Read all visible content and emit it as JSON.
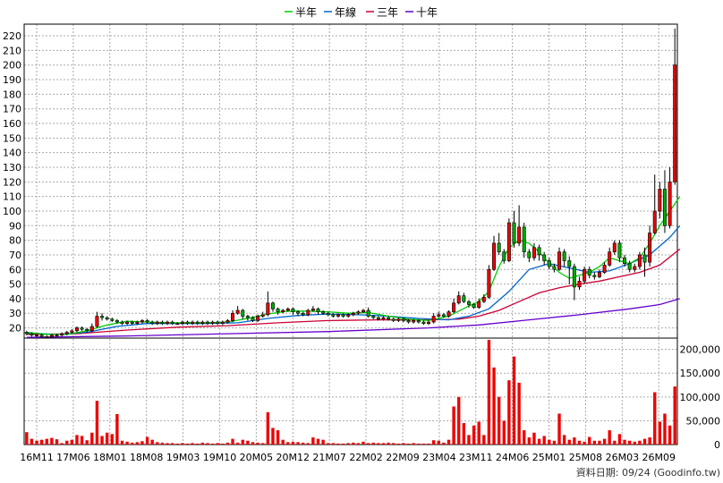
{
  "legend": [
    {
      "label": "半年",
      "color": "#00cc00"
    },
    {
      "label": "年線",
      "color": "#0066cc"
    },
    {
      "label": "三年",
      "color": "#cc0033"
    },
    {
      "label": "十年",
      "color": "#6600cc"
    }
  ],
  "footer": "資料日期: 09/24 (Goodinfo.tw)",
  "colors": {
    "up": "#ee0000",
    "down": "#00aa00",
    "volume": "#ee0000",
    "grid": "#aaaaaa"
  },
  "chart_data": {
    "type": "candlestick",
    "price_axis": {
      "ylim": [
        13,
        228
      ],
      "ticks": [
        20,
        30,
        40,
        50,
        60,
        70,
        80,
        90,
        100,
        110,
        120,
        130,
        140,
        150,
        160,
        170,
        180,
        190,
        200,
        210,
        220
      ]
    },
    "volume_axis": {
      "ylim": [
        0,
        220000
      ],
      "ticks": [
        0,
        50000,
        100000,
        150000,
        200000
      ],
      "tick_labels": [
        "0",
        "50,000",
        "100,000",
        "150,000",
        "200,000"
      ]
    },
    "x_tick_labels": [
      "16M11",
      "17M06",
      "18M01",
      "18M08",
      "19M03",
      "19M10",
      "20M05",
      "20M12",
      "21M07",
      "22M02",
      "22M09",
      "23M04",
      "23M11",
      "24M06",
      "25M01",
      "25M08",
      "26M03",
      "26M09"
    ],
    "candles": [
      [
        17,
        16,
        18,
        15
      ],
      [
        16,
        15,
        17,
        14
      ],
      [
        15,
        15,
        16,
        14
      ],
      [
        15,
        14,
        16,
        13
      ],
      [
        14,
        14,
        15,
        13
      ],
      [
        14,
        15,
        16,
        13
      ],
      [
        15,
        15,
        16,
        14
      ],
      [
        15,
        16,
        17,
        14
      ],
      [
        16,
        17,
        18,
        15
      ],
      [
        17,
        18,
        19,
        16
      ],
      [
        18,
        20,
        21,
        17
      ],
      [
        20,
        19,
        21,
        18
      ],
      [
        19,
        18,
        20,
        17
      ],
      [
        18,
        21,
        23,
        17
      ],
      [
        21,
        28,
        31,
        20
      ],
      [
        28,
        27,
        30,
        25
      ],
      [
        27,
        26,
        28,
        25
      ],
      [
        26,
        25,
        27,
        24
      ],
      [
        25,
        24,
        26,
        23
      ],
      [
        24,
        23,
        25,
        22
      ],
      [
        23,
        24,
        25,
        22
      ],
      [
        24,
        23,
        25,
        22
      ],
      [
        23,
        24,
        25,
        22
      ],
      [
        24,
        25,
        26,
        23
      ],
      [
        25,
        24,
        26,
        23
      ],
      [
        24,
        23,
        25,
        22
      ],
      [
        23,
        24,
        25,
        22
      ],
      [
        24,
        23,
        25,
        22
      ],
      [
        23,
        24,
        25,
        22
      ],
      [
        24,
        23,
        25,
        22
      ],
      [
        23,
        23,
        24,
        22
      ],
      [
        23,
        24,
        25,
        22
      ],
      [
        24,
        23,
        25,
        22
      ],
      [
        23,
        24,
        25,
        22
      ],
      [
        24,
        23,
        25,
        22
      ],
      [
        23,
        24,
        25,
        22
      ],
      [
        24,
        23,
        25,
        22
      ],
      [
        23,
        24,
        25,
        22
      ],
      [
        24,
        23,
        25,
        22
      ],
      [
        23,
        24,
        25,
        22
      ],
      [
        24,
        25,
        26,
        23
      ],
      [
        25,
        30,
        32,
        24
      ],
      [
        30,
        32,
        35,
        29
      ],
      [
        32,
        28,
        33,
        26
      ],
      [
        28,
        27,
        29,
        25
      ],
      [
        27,
        25,
        28,
        24
      ],
      [
        25,
        28,
        29,
        24
      ],
      [
        28,
        29,
        31,
        27
      ],
      [
        29,
        37,
        45,
        28
      ],
      [
        37,
        33,
        38,
        31
      ],
      [
        33,
        31,
        34,
        29
      ],
      [
        31,
        32,
        33,
        30
      ],
      [
        32,
        33,
        34,
        31
      ],
      [
        33,
        31,
        34,
        29
      ],
      [
        31,
        30,
        32,
        28
      ],
      [
        30,
        29,
        31,
        28
      ],
      [
        29,
        32,
        33,
        28
      ],
      [
        32,
        33,
        35,
        31
      ],
      [
        33,
        31,
        34,
        29
      ],
      [
        31,
        30,
        32,
        29
      ],
      [
        30,
        29,
        31,
        28
      ],
      [
        29,
        28,
        30,
        27
      ],
      [
        28,
        29,
        30,
        27
      ],
      [
        29,
        28,
        30,
        27
      ],
      [
        28,
        29,
        30,
        27
      ],
      [
        29,
        30,
        31,
        28
      ],
      [
        30,
        31,
        32,
        29
      ],
      [
        31,
        32,
        33,
        30
      ],
      [
        32,
        28,
        34,
        27
      ],
      [
        28,
        27,
        29,
        26
      ],
      [
        27,
        26,
        28,
        25
      ],
      [
        26,
        27,
        28,
        25
      ],
      [
        27,
        26,
        28,
        25
      ],
      [
        26,
        25,
        27,
        24
      ],
      [
        25,
        26,
        27,
        24
      ],
      [
        26,
        25,
        27,
        24
      ],
      [
        25,
        24,
        26,
        23
      ],
      [
        24,
        25,
        26,
        23
      ],
      [
        25,
        24,
        26,
        23
      ],
      [
        24,
        23,
        25,
        22
      ],
      [
        23,
        24,
        25,
        22
      ],
      [
        24,
        28,
        30,
        23
      ],
      [
        28,
        29,
        31,
        27
      ],
      [
        29,
        28,
        30,
        27
      ],
      [
        28,
        31,
        32,
        27
      ],
      [
        31,
        37,
        40,
        30
      ],
      [
        37,
        42,
        45,
        36
      ],
      [
        42,
        38,
        44,
        37
      ],
      [
        38,
        36,
        39,
        34
      ],
      [
        36,
        34,
        37,
        33
      ],
      [
        34,
        38,
        40,
        33
      ],
      [
        38,
        41,
        43,
        37
      ],
      [
        41,
        60,
        63,
        40
      ],
      [
        60,
        78,
        83,
        59
      ],
      [
        78,
        72,
        85,
        70
      ],
      [
        72,
        66,
        74,
        64
      ],
      [
        66,
        92,
        95,
        65
      ],
      [
        92,
        78,
        100,
        75
      ],
      [
        78,
        89,
        104,
        76
      ],
      [
        89,
        72,
        92,
        68
      ],
      [
        72,
        68,
        74,
        65
      ],
      [
        68,
        75,
        78,
        66
      ],
      [
        75,
        70,
        77,
        66
      ],
      [
        70,
        66,
        72,
        63
      ],
      [
        66,
        62,
        68,
        60
      ],
      [
        62,
        60,
        64,
        58
      ],
      [
        60,
        72,
        75,
        59
      ],
      [
        72,
        66,
        74,
        62
      ],
      [
        66,
        62,
        69,
        50
      ],
      [
        62,
        48,
        64,
        39
      ],
      [
        48,
        52,
        55,
        46
      ],
      [
        52,
        60,
        62,
        50
      ],
      [
        60,
        56,
        62,
        54
      ],
      [
        56,
        55,
        58,
        53
      ],
      [
        55,
        58,
        60,
        54
      ],
      [
        58,
        63,
        65,
        57
      ],
      [
        63,
        72,
        75,
        62
      ],
      [
        72,
        78,
        80,
        70
      ],
      [
        78,
        68,
        80,
        65
      ],
      [
        68,
        64,
        70,
        62
      ],
      [
        64,
        60,
        66,
        58
      ],
      [
        60,
        62,
        64,
        58
      ],
      [
        62,
        70,
        72,
        60
      ],
      [
        70,
        65,
        75,
        55
      ],
      [
        65,
        85,
        90,
        62
      ],
      [
        85,
        100,
        125,
        84
      ],
      [
        100,
        115,
        120,
        95
      ],
      [
        115,
        90,
        128,
        85
      ],
      [
        90,
        120,
        130,
        88
      ],
      [
        120,
        200,
        225,
        118
      ]
    ],
    "volume": [
      26000,
      12000,
      8000,
      10000,
      12000,
      14000,
      11000,
      3000,
      8000,
      10000,
      20000,
      18000,
      9000,
      25000,
      92000,
      18000,
      25000,
      22000,
      64000,
      8000,
      6000,
      4000,
      5000,
      7000,
      16000,
      10000,
      5000,
      4000,
      3000,
      3000,
      2000,
      3000,
      2000,
      3000,
      2000,
      4000,
      3000,
      2000,
      3000,
      2000,
      4000,
      12000,
      4000,
      10000,
      8000,
      5000,
      4000,
      3000,
      68000,
      35000,
      30000,
      10000,
      5000,
      6000,
      5000,
      4000,
      3000,
      15000,
      12000,
      10000,
      3000,
      3000,
      2000,
      2000,
      3000,
      4000,
      3000,
      6000,
      3000,
      4000,
      3000,
      3000,
      4000,
      3000,
      2000,
      3000,
      2000,
      3000,
      2000,
      2000,
      2000,
      9000,
      8000,
      4000,
      10000,
      80000,
      100000,
      45000,
      20000,
      40000,
      48000,
      20000,
      220000,
      162000,
      100000,
      50000,
      135000,
      185000,
      130000,
      30000,
      15000,
      25000,
      12000,
      18000,
      10000,
      8000,
      65000,
      20000,
      10000,
      15000,
      8000,
      6000,
      16000,
      8000,
      8000,
      12000,
      30000,
      8000,
      22000,
      10000,
      8000,
      6000,
      8000,
      12000,
      15000,
      110000,
      48000,
      65000,
      40000,
      122000
    ],
    "ma_half_year": [
      [
        0,
        17
      ],
      [
        4,
        15.5
      ],
      [
        8,
        15.5
      ],
      [
        12,
        18
      ],
      [
        16,
        22
      ],
      [
        20,
        24.5
      ],
      [
        24,
        24
      ],
      [
        28,
        23.5
      ],
      [
        32,
        23.5
      ],
      [
        36,
        23.5
      ],
      [
        40,
        24
      ],
      [
        44,
        26.5
      ],
      [
        48,
        29.5
      ],
      [
        52,
        31.5
      ],
      [
        56,
        31.5
      ],
      [
        60,
        31
      ],
      [
        64,
        30
      ],
      [
        68,
        30.5
      ],
      [
        72,
        28
      ],
      [
        76,
        26
      ],
      [
        80,
        25
      ],
      [
        84,
        28
      ],
      [
        88,
        35
      ],
      [
        90,
        38
      ],
      [
        92,
        45
      ],
      [
        94,
        62
      ],
      [
        96,
        75
      ],
      [
        98,
        80
      ],
      [
        100,
        78
      ],
      [
        102,
        72
      ],
      [
        104,
        64
      ],
      [
        106,
        58
      ],
      [
        108,
        54
      ],
      [
        110,
        56
      ],
      [
        112,
        58
      ],
      [
        114,
        62
      ],
      [
        116,
        68
      ],
      [
        118,
        66
      ],
      [
        120,
        64
      ],
      [
        122,
        68
      ],
      [
        124,
        78
      ],
      [
        126,
        90
      ],
      [
        128,
        100
      ],
      [
        130,
        110
      ]
    ],
    "ma_year": [
      [
        0,
        16.5
      ],
      [
        6,
        15.5
      ],
      [
        12,
        17
      ],
      [
        18,
        21
      ],
      [
        24,
        23
      ],
      [
        30,
        23
      ],
      [
        36,
        23
      ],
      [
        42,
        23.5
      ],
      [
        48,
        26.5
      ],
      [
        54,
        28.5
      ],
      [
        60,
        29.5
      ],
      [
        66,
        29
      ],
      [
        72,
        28
      ],
      [
        78,
        26.5
      ],
      [
        84,
        25.5
      ],
      [
        88,
        28
      ],
      [
        92,
        33
      ],
      [
        96,
        45
      ],
      [
        100,
        60
      ],
      [
        104,
        64
      ],
      [
        108,
        61
      ],
      [
        112,
        58
      ],
      [
        116,
        59
      ],
      [
        120,
        64
      ],
      [
        124,
        70
      ],
      [
        128,
        82
      ],
      [
        130,
        90
      ]
    ],
    "ma_three_year": [
      [
        0,
        15.5
      ],
      [
        10,
        16
      ],
      [
        20,
        18.5
      ],
      [
        30,
        20.5
      ],
      [
        40,
        21.5
      ],
      [
        50,
        23.5
      ],
      [
        60,
        25
      ],
      [
        70,
        25.5
      ],
      [
        80,
        25.5
      ],
      [
        86,
        26
      ],
      [
        90,
        28
      ],
      [
        94,
        32
      ],
      [
        98,
        38
      ],
      [
        102,
        44
      ],
      [
        106,
        47.5
      ],
      [
        110,
        50
      ],
      [
        114,
        52
      ],
      [
        118,
        55
      ],
      [
        122,
        58
      ],
      [
        126,
        63
      ],
      [
        130,
        74
      ]
    ],
    "ma_ten_year": [
      [
        0,
        13.5
      ],
      [
        20,
        14.5
      ],
      [
        40,
        16
      ],
      [
        60,
        17.5
      ],
      [
        80,
        20
      ],
      [
        90,
        22
      ],
      [
        100,
        25.5
      ],
      [
        110,
        29
      ],
      [
        120,
        33
      ],
      [
        126,
        36
      ],
      [
        130,
        40
      ]
    ]
  }
}
